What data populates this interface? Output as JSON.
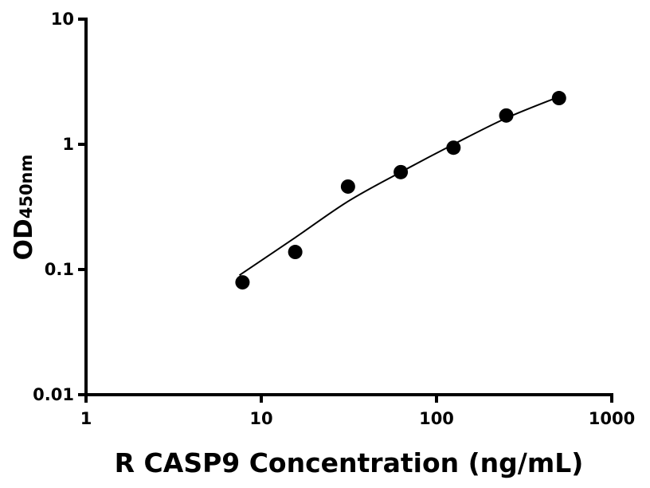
{
  "chart_data": {
    "type": "scatter",
    "title": "",
    "xlabel": "R CASP9 Concentration (ng/mL)",
    "ylabel": "OD",
    "ylabel_subscript": "450nm",
    "x_scale": "log",
    "y_scale": "log",
    "xlim": [
      1,
      1000
    ],
    "ylim": [
      0.01,
      10
    ],
    "x_ticks": [
      "1",
      "10",
      "100",
      "1000"
    ],
    "y_ticks": [
      "0.01",
      "0.1",
      "1",
      "10"
    ],
    "grid": false,
    "legend": "none",
    "points": {
      "x": [
        7.8125,
        15.625,
        31.25,
        62.5,
        125,
        250,
        500
      ],
      "y": [
        0.079,
        0.138,
        0.46,
        0.6,
        0.94,
        1.7,
        2.34
      ]
    },
    "fit_curve": {
      "x": [
        7.5,
        15.625,
        31.25,
        62.5,
        125,
        250,
        500
      ],
      "y": [
        0.09,
        0.18,
        0.35,
        0.6,
        1.0,
        1.62,
        2.4
      ]
    },
    "colors": {
      "points": "#000000",
      "curve": "#000000",
      "axes": "#000000"
    }
  }
}
